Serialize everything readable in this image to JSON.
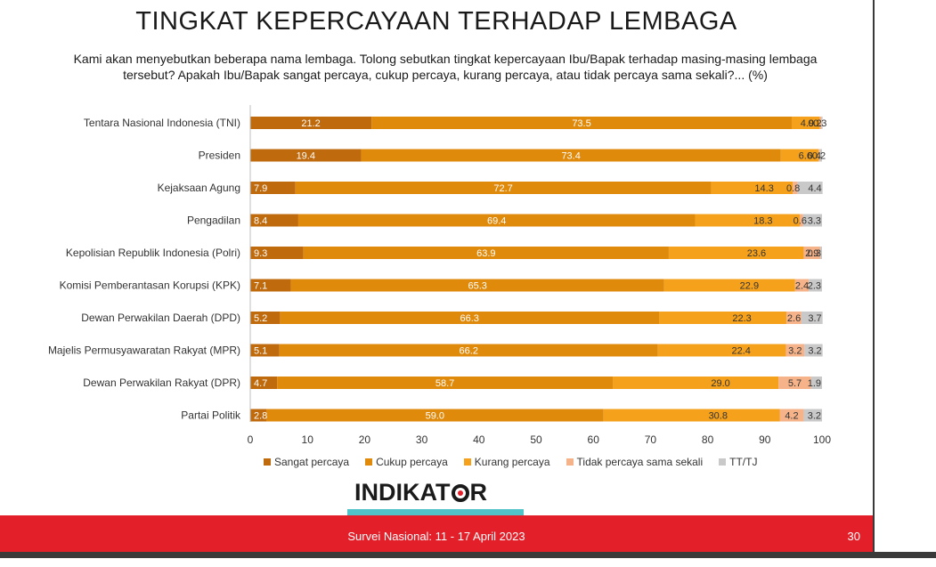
{
  "title": "TINGKAT KEPERCAYAAN TERHADAP LEMBAGA",
  "subtitle": "Kami akan menyebutkan beberapa nama lembaga. Tolong sebutkan tingkat kepercayaan Ibu/Bapak terhadap masing-masing lembaga tersebut? Apakah Ibu/Bapak sangat percaya, cukup percaya, kurang percaya, atau tidak percaya sama sekali?... (%)",
  "logo_text": {
    "left": "INDIKAT",
    "right": "R"
  },
  "footer": {
    "text": "Survei Nasional: 11 - 17 April 2023",
    "page": "30"
  },
  "colors": {
    "sangat": "#bf6a0c",
    "cukup": "#e08a0c",
    "kurang": "#f5a11c",
    "tidak": "#f6b38a",
    "tt": "#c9c9c9",
    "footer": "#e3202a",
    "logo_accent": "#4fc3c7"
  },
  "chart_data": {
    "type": "bar",
    "orientation": "horizontal",
    "stacked": true,
    "categories": [
      "Tentara Nasional Indonesia (TNI)",
      "Presiden",
      "Kejaksaan Agung",
      "Pengadilan",
      "Kepolisian Republik Indonesia (Polri)",
      "Komisi Pemberantasan Korupsi (KPK)",
      "Dewan Perwakilan Daerah (DPD)",
      "Majelis Permusyawaratan Rakyat (MPR)",
      "Dewan Perwakilan Rakyat (DPR)",
      "Partai Politik"
    ],
    "series": [
      {
        "name": "Sangat percaya",
        "color_key": "sangat",
        "values": [
          21.2,
          19.4,
          7.9,
          8.4,
          9.3,
          7.1,
          5.2,
          5.1,
          4.7,
          2.8
        ],
        "labels": [
          "21.2",
          "19.4",
          "7.9",
          "8.4",
          "9.3",
          "7.1",
          "5.2",
          "5.1",
          "4.7",
          "2.8"
        ]
      },
      {
        "name": "Cukup percaya",
        "color_key": "cukup",
        "values": [
          73.5,
          73.4,
          72.7,
          69.4,
          63.9,
          65.3,
          66.3,
          66.2,
          58.7,
          59.0
        ],
        "labels": [
          "73.5",
          "73.4",
          "72.7",
          "69.4",
          "63.9",
          "65.3",
          "66.3",
          "66.2",
          "58.7",
          "59.0"
        ]
      },
      {
        "name": "Kurang percaya",
        "color_key": "kurang",
        "values": [
          4.9,
          6.6,
          14.3,
          18.3,
          23.6,
          22.9,
          22.3,
          22.4,
          29.0,
          30.8
        ],
        "labels": [
          "4.9",
          "6.6",
          "14.3",
          "18.3",
          "23.6",
          "22.9",
          "22.3",
          "22.4",
          "29.0",
          "30.8"
        ]
      },
      {
        "name": "Tidak percaya sama sekali",
        "color_key": "tidak",
        "values": [
          0.3,
          0.2,
          0.8,
          0.6,
          2.9,
          2.4,
          2.6,
          3.2,
          5.7,
          4.2
        ],
        "labels": [
          "0.3",
          "0.2",
          "0.8",
          "0.6",
          "2.9",
          "2.4",
          "2.6",
          "3.2",
          "5.7",
          "4.2"
        ]
      },
      {
        "name": "TT/TJ",
        "color_key": "tt",
        "values": [
          0.2,
          0.4,
          4.4,
          3.3,
          0.3,
          2.3,
          3.7,
          3.2,
          1.9,
          3.2
        ],
        "labels": [
          "0.2",
          "0.4",
          "4.4",
          "3.3",
          "0.3",
          "2.3",
          "3.7",
          "3.2",
          "1.9",
          "3.2"
        ]
      }
    ],
    "xlim": [
      0,
      100
    ],
    "xticks": [
      "0",
      "10",
      "20",
      "30",
      "40",
      "50",
      "60",
      "70",
      "80",
      "90",
      "100"
    ],
    "grid": false,
    "legend_position": "bottom"
  }
}
